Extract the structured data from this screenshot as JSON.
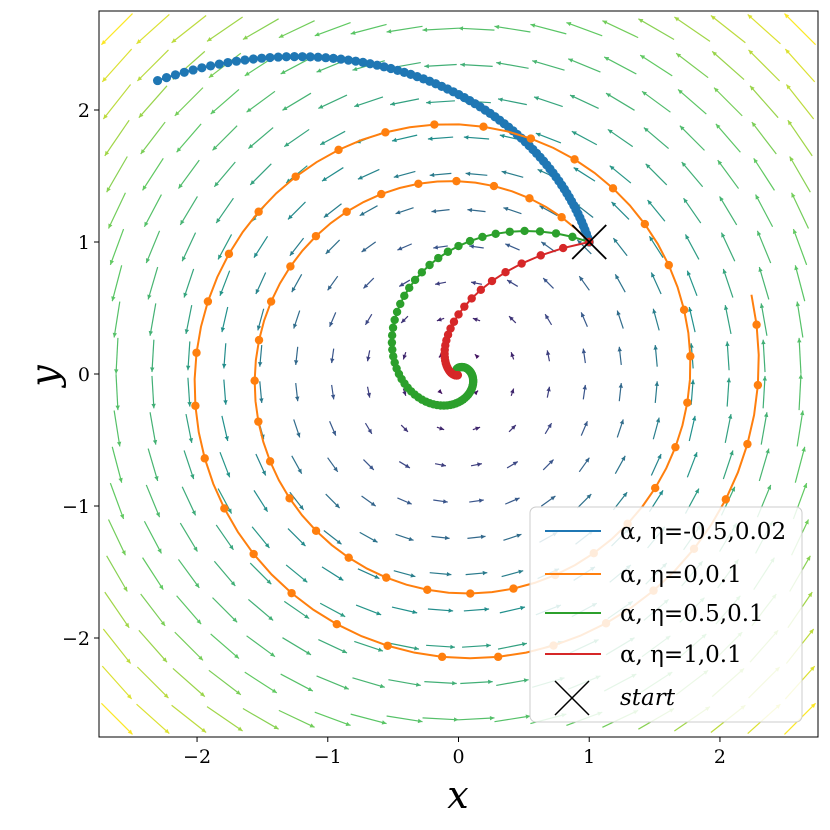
{
  "chart_data": {
    "type": "line",
    "xlabel": "x",
    "ylabel": "y",
    "xlim": [
      -2.75,
      2.75
    ],
    "ylim": [
      -2.75,
      2.75
    ],
    "xticks": [
      -2,
      -1,
      0,
      1,
      2
    ],
    "yticks": [
      -2,
      -1,
      0,
      1,
      2
    ],
    "xtick_labels": [
      "−2",
      "−1",
      "0",
      "1",
      "2"
    ],
    "ytick_labels": [
      "−2",
      "−1",
      "0",
      "1",
      "2"
    ],
    "grid": false,
    "legend_position": "lower-right",
    "background_field": {
      "type": "quiver",
      "description": "rotational vector field, arrows circulate counter-clockwise around origin, colour grows with distance (viridis)",
      "colormap": [
        "#440154",
        "#3b528b",
        "#21918c",
        "#5ec962",
        "#fde725"
      ]
    },
    "start": {
      "x": 1,
      "y": 1,
      "label": "start",
      "marker": "x",
      "color": "#000000"
    },
    "series": [
      {
        "name": "α, η=-0.5,0.02",
        "alpha": -0.5,
        "eta": 0.02,
        "color": "#1f77b4",
        "step_deg": 1.15,
        "marker_every": 1,
        "r0": 1.4142,
        "theta0_deg": 45,
        "r1": 3.2,
        "theta1_deg": 136,
        "marker_size": 4.6
      },
      {
        "name": "α, η=0,0.1",
        "alpha": 0,
        "eta": 0.1,
        "color": "#ff7f0e",
        "step_deg": 5.7,
        "marker_every": 2,
        "r0": 1.4142,
        "theta0_deg": 45,
        "r1": 2.32,
        "theta1_deg": 735,
        "marker_size": 4.2
      },
      {
        "name": "α, η=0.5,0.1",
        "alpha": 0.5,
        "eta": 0.1,
        "color": "#2ca02c",
        "step_deg": 5.0,
        "marker_every": 1,
        "r0": 1.4142,
        "theta0_deg": 45,
        "r1": 0.04,
        "theta1_deg": 470,
        "marker_size": 4.2
      },
      {
        "name": "α, η=1,0.1",
        "alpha": 1,
        "eta": 0.1,
        "color": "#d62728",
        "step_deg": 5.0,
        "marker_every": 1,
        "r0": 1.4142,
        "theta0_deg": 45,
        "r1": 0.01,
        "theta1_deg": 240,
        "marker_size": 4.2
      }
    ]
  },
  "legend": {
    "entries": [
      {
        "label": "α, η=-0.5,0.02",
        "color": "#1f77b4"
      },
      {
        "label": "α, η=0,0.1",
        "color": "#ff7f0e"
      },
      {
        "label": "α, η=0.5,0.1",
        "color": "#2ca02c"
      },
      {
        "label": "α, η=1,0.1",
        "color": "#d62728"
      }
    ],
    "start_label": "start"
  }
}
